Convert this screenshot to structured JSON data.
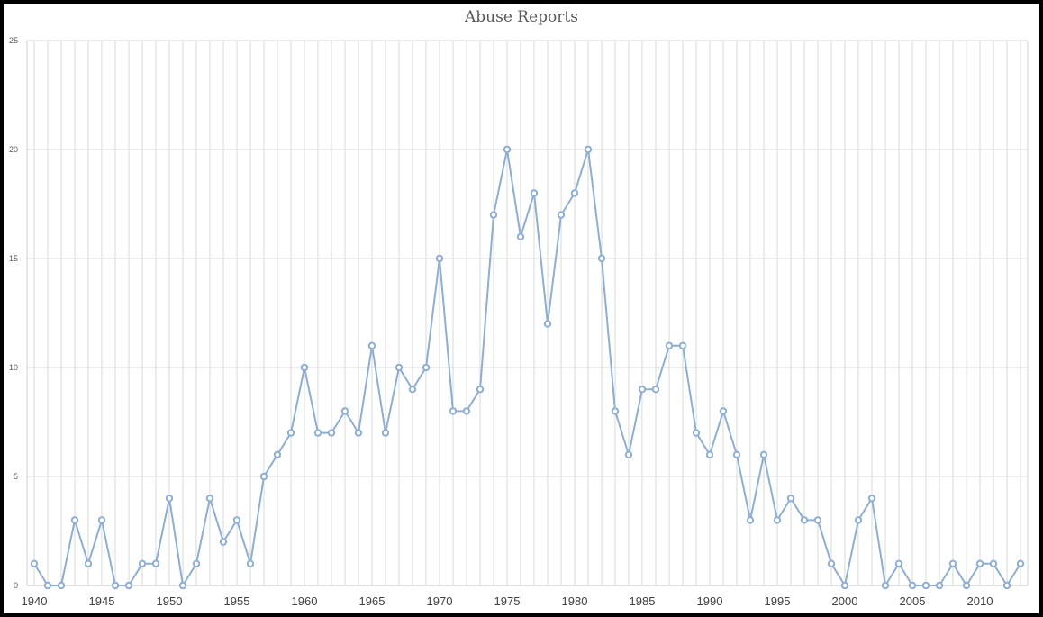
{
  "chart_data": {
    "type": "line",
    "title": "Abuse Reports",
    "xlabel": "",
    "ylabel": "",
    "x": [
      1940,
      1941,
      1942,
      1943,
      1944,
      1945,
      1946,
      1947,
      1948,
      1949,
      1950,
      1951,
      1952,
      1953,
      1954,
      1955,
      1956,
      1957,
      1958,
      1959,
      1960,
      1961,
      1962,
      1963,
      1964,
      1965,
      1966,
      1967,
      1968,
      1969,
      1970,
      1971,
      1972,
      1973,
      1974,
      1975,
      1976,
      1977,
      1978,
      1979,
      1980,
      1981,
      1982,
      1983,
      1984,
      1985,
      1986,
      1987,
      1988,
      1989,
      1990,
      1991,
      1992,
      1993,
      1994,
      1995,
      1996,
      1997,
      1998,
      1999,
      2000,
      2001,
      2002,
      2003,
      2004,
      2005,
      2006,
      2007,
      2008,
      2009,
      2010,
      2011,
      2012,
      2013
    ],
    "series": [
      {
        "values": [
          1,
          0,
          0,
          3,
          1,
          3,
          0,
          0,
          1,
          1,
          4,
          0,
          1,
          4,
          2,
          3,
          1,
          5,
          6,
          7,
          10,
          7,
          7,
          8,
          7,
          11,
          7,
          10,
          9,
          10,
          15,
          8,
          8,
          9,
          17,
          20,
          16,
          18,
          12,
          17,
          18,
          20,
          15,
          8,
          6,
          9,
          9,
          11,
          11,
          7,
          6,
          8,
          6,
          3,
          6,
          3,
          4,
          3,
          3,
          1,
          0,
          3,
          4,
          0,
          1,
          0,
          0,
          0,
          1,
          0,
          1,
          1,
          0,
          1
        ],
        "color": "#8eaed3"
      }
    ],
    "ylim": [
      0,
      25
    ],
    "y_ticks": [
      "0",
      "5",
      "10",
      "15",
      "20",
      "25"
    ],
    "x_tick_labels": [
      "1940",
      "1945",
      "1950",
      "1955",
      "1960",
      "1965",
      "1970",
      "1975",
      "1980",
      "1985",
      "1990",
      "1995",
      "2000",
      "2005",
      "2010"
    ],
    "grid": true,
    "legend": "none"
  }
}
